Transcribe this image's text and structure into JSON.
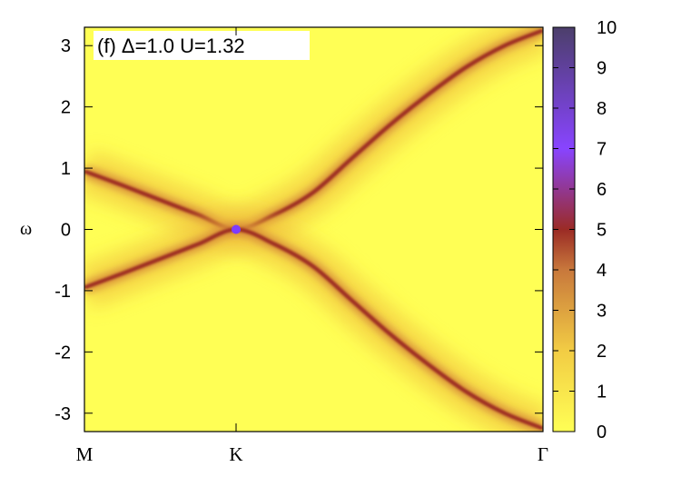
{
  "chart_data": {
    "type": "heatmap",
    "title": "",
    "annotation": "(f)  Δ=1.0  U=1.32",
    "ylabel": "ω",
    "xlabel": "",
    "ylim": [
      -3.3,
      3.3
    ],
    "y_ticks": [
      "-3",
      "-2",
      "-1",
      "0",
      "1",
      "2",
      "3"
    ],
    "y_tick_values": [
      -3,
      -2,
      -1,
      0,
      1,
      2,
      3
    ],
    "x_ticks": [
      "M",
      "K",
      "Γ"
    ],
    "x_tick_values": [
      0,
      1,
      3
    ],
    "x_range": [
      0,
      3
    ],
    "colorbar": {
      "range": [
        0,
        10
      ],
      "ticks": [
        "0",
        "1",
        "2",
        "3",
        "4",
        "5",
        "6",
        "7",
        "8",
        "9",
        "10"
      ],
      "colors": [
        "#ffff55",
        "#f2cc44",
        "#c8783c",
        "#9b2b25",
        "#8844ff",
        "#4c3f6b"
      ],
      "stops": [
        0,
        2,
        4,
        5,
        7,
        10
      ]
    },
    "series": [
      {
        "values": [
          {
            "x": 0.0,
            "y": 0.95
          },
          {
            "x": 0.25,
            "y": 0.72
          },
          {
            "x": 0.5,
            "y": 0.48
          },
          {
            "x": 0.75,
            "y": 0.24
          },
          {
            "x": 1.0,
            "y": 0.0
          },
          {
            "x": 1.25,
            "y": 0.24
          },
          {
            "x": 1.5,
            "y": 0.6
          },
          {
            "x": 1.75,
            "y": 1.15
          },
          {
            "x": 2.0,
            "y": 1.7
          },
          {
            "x": 2.25,
            "y": 2.2
          },
          {
            "x": 2.5,
            "y": 2.65
          },
          {
            "x": 2.75,
            "y": 3.0
          },
          {
            "x": 3.0,
            "y": 3.25
          }
        ]
      },
      {
        "values": [
          {
            "x": 0.0,
            "y": -0.95
          },
          {
            "x": 0.25,
            "y": -0.72
          },
          {
            "x": 0.5,
            "y": -0.48
          },
          {
            "x": 0.75,
            "y": -0.24
          },
          {
            "x": 1.0,
            "y": 0.0
          },
          {
            "x": 1.25,
            "y": -0.24
          },
          {
            "x": 1.5,
            "y": -0.6
          },
          {
            "x": 1.75,
            "y": -1.15
          },
          {
            "x": 2.0,
            "y": -1.7
          },
          {
            "x": 2.25,
            "y": -2.2
          },
          {
            "x": 2.5,
            "y": -2.65
          },
          {
            "x": 2.75,
            "y": -3.0
          },
          {
            "x": 3.0,
            "y": -3.25
          }
        ]
      }
    ]
  }
}
